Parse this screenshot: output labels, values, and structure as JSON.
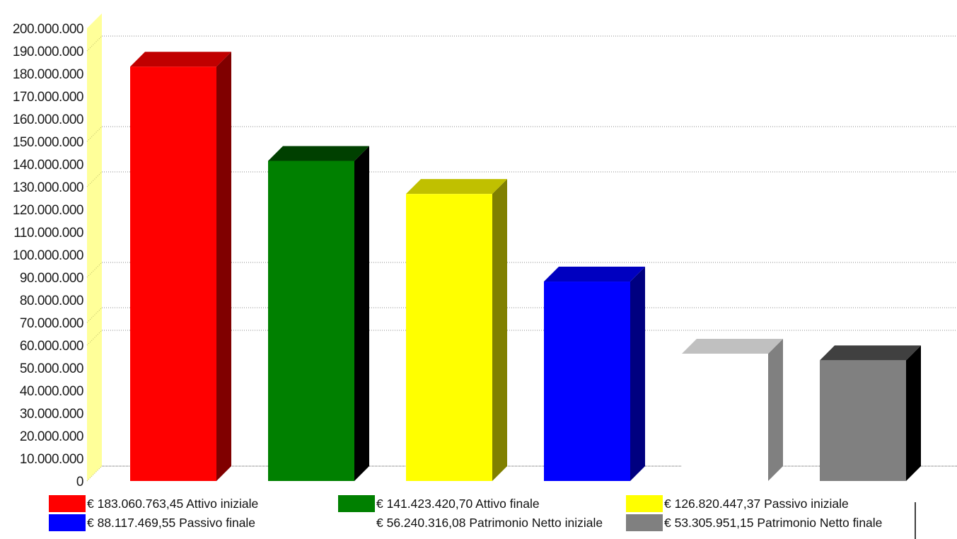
{
  "chart_data": {
    "type": "bar",
    "title": "",
    "xlabel": "",
    "ylabel": "",
    "ylim": [
      0,
      200000000
    ],
    "y_ticks": [
      "0",
      "10.000.000",
      "20.000.000",
      "30.000.000",
      "40.000.000",
      "50.000.000",
      "60.000.000",
      "70.000.000",
      "80.000.000",
      "90.000.000",
      "100.000.000",
      "110.000.000",
      "120.000.000",
      "130.000.000",
      "140.000.000",
      "150.000.000",
      "160.000.000",
      "170.000.000",
      "180.000.000",
      "190.000.000",
      "200.000.000"
    ],
    "gridlines": [
      0,
      60000000,
      70000000,
      90000000,
      130000000,
      150000000,
      190000000
    ],
    "style": "3d",
    "legend_placement": "bottom",
    "bars": [
      {
        "label": "€  183.060.763,45 Attivo iniziale",
        "value": 183060763.45,
        "color": "#ff0000",
        "top_color": "#c00000",
        "side_color": "#800000"
      },
      {
        "label": "€  141.423.420,70 Attivo finale",
        "value": 141423420.7,
        "color": "#008000",
        "top_color": "#004000",
        "side_color": "#000000"
      },
      {
        "label": "€  126.820.447,37 Passivo iniziale",
        "value": 126820447.37,
        "color": "#ffff00",
        "top_color": "#c0c000",
        "side_color": "#808000"
      },
      {
        "label": "€  88.117.469,55 Passivo finale",
        "value": 88117469.55,
        "color": "#0000ff",
        "top_color": "#0000c0",
        "side_color": "#000080"
      },
      {
        "label": "€  56.240.316,08 Patrimonio Netto iniziale",
        "value": 56240316.08,
        "color": "#ffffff",
        "top_color": "#c0c0c0",
        "side_color": "#808080"
      },
      {
        "label": "€  53.305.951,15 Patrimonio Netto finale",
        "value": 53305951.15,
        "color": "#808080",
        "top_color": "#404040",
        "side_color": "#000000"
      }
    ]
  }
}
